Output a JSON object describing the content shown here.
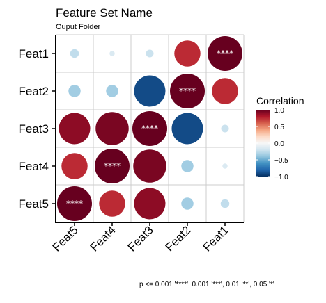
{
  "chart_data": {
    "type": "heatmap",
    "title": "Feature Set Name",
    "subtitle": "Ouput Folder",
    "rows": [
      "Feat1",
      "Feat2",
      "Feat3",
      "Feat4",
      "Feat5"
    ],
    "columns": [
      "Feat5",
      "Feat4",
      "Feat3",
      "Feat2",
      "Feat1"
    ],
    "values": [
      [
        -0.25,
        -0.15,
        -0.22,
        0.75,
        1.0
      ],
      [
        -0.35,
        -0.35,
        -0.9,
        1.0,
        0.75
      ],
      [
        0.9,
        0.95,
        1.0,
        -0.9,
        -0.22
      ],
      [
        0.75,
        1.0,
        0.95,
        -0.35,
        -0.15
      ],
      [
        1.0,
        0.75,
        0.9,
        -0.35,
        -0.25
      ]
    ],
    "significance": [
      [
        "",
        "",
        "",
        "",
        "****"
      ],
      [
        "",
        "",
        "",
        "****",
        ""
      ],
      [
        "",
        "",
        "****",
        "",
        ""
      ],
      [
        "",
        "****",
        "",
        "",
        ""
      ],
      [
        "****",
        "",
        "",
        "",
        ""
      ]
    ],
    "legend": {
      "title": "Correlation",
      "ticks": [
        "1.0",
        "0.5",
        "0.0",
        "−0.5",
        "−1.0"
      ],
      "range": [
        -1,
        1
      ],
      "colors": [
        "#053061",
        "#2166ac",
        "#4393c3",
        "#92c5de",
        "#d1e5f0",
        "#f7f7f7",
        "#fddbc7",
        "#f4a582",
        "#d6604d",
        "#b2182b",
        "#67001f"
      ]
    },
    "caption": "p <= 0.001 '****', 0.001 '***', 0.01 '**', 0.05 '*'"
  }
}
